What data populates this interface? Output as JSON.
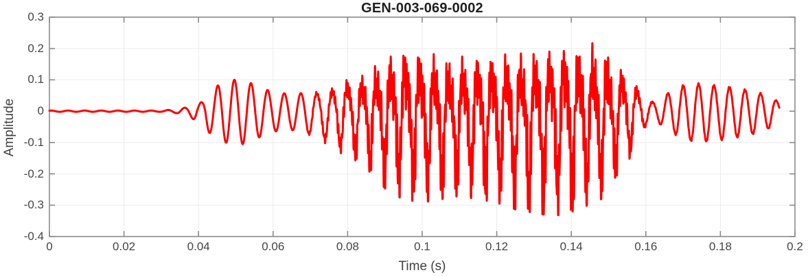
{
  "figure": {
    "title": "GEN-003-069-0002"
  },
  "axes": {
    "box_color": "#8a8a8a",
    "grid_color": "#ebebeb",
    "tick_color": "#8a8a8a",
    "text_color": "#454545",
    "tick_length": 8,
    "grid_on": true
  },
  "chart_data": {
    "type": "line",
    "title": "GEN-003-069-0002",
    "xlabel": "Time (s)",
    "ylabel": "Amplitude",
    "xlim": [
      0,
      0.2
    ],
    "ylim": [
      -0.4,
      0.3
    ],
    "xticks": [
      0,
      0.02,
      0.04,
      0.06,
      0.08,
      0.1,
      0.12,
      0.14,
      0.16,
      0.18,
      0.2
    ],
    "xtick_labels": [
      "0",
      "0.02",
      "0.04",
      "0.06",
      "0.08",
      "0.1",
      "0.12",
      "0.14",
      "0.16",
      "0.18",
      "0.2"
    ],
    "yticks": [
      -0.4,
      -0.3,
      -0.2,
      -0.1,
      0,
      0.1,
      0.2,
      0.3
    ],
    "ytick_labels": [
      "-0.4",
      "-0.3",
      "-0.2",
      "-0.1",
      "0",
      "0.1",
      "0.2",
      "0.3"
    ],
    "grid": true,
    "legend": null,
    "line_color": "#ff0000",
    "line_width": 3,
    "signal": {
      "description": "speech-like waveform; piecewise-linear envelope rows are [time_s, positive_peak, negative_peak_magnitude]",
      "start_time": 0.0,
      "end_time": 0.1958,
      "envelope": [
        [
          0.0,
          0.002,
          0.002
        ],
        [
          0.03,
          0.002,
          0.002
        ],
        [
          0.034,
          0.006,
          0.006
        ],
        [
          0.038,
          0.015,
          0.02
        ],
        [
          0.041,
          0.03,
          0.05
        ],
        [
          0.044,
          0.07,
          0.08
        ],
        [
          0.047,
          0.1,
          0.1
        ],
        [
          0.052,
          0.1,
          0.105
        ],
        [
          0.056,
          0.08,
          0.085
        ],
        [
          0.06,
          0.06,
          0.065
        ],
        [
          0.065,
          0.055,
          0.06
        ],
        [
          0.07,
          0.06,
          0.075
        ],
        [
          0.075,
          0.07,
          0.1
        ],
        [
          0.079,
          0.1,
          0.13
        ],
        [
          0.083,
          0.11,
          0.15
        ],
        [
          0.087,
          0.14,
          0.19
        ],
        [
          0.091,
          0.17,
          0.24
        ],
        [
          0.095,
          0.19,
          0.26
        ],
        [
          0.1,
          0.18,
          0.27
        ],
        [
          0.105,
          0.17,
          0.26
        ],
        [
          0.11,
          0.165,
          0.25
        ],
        [
          0.115,
          0.17,
          0.26
        ],
        [
          0.12,
          0.17,
          0.27
        ],
        [
          0.125,
          0.18,
          0.29
        ],
        [
          0.13,
          0.185,
          0.3
        ],
        [
          0.135,
          0.19,
          0.31
        ],
        [
          0.14,
          0.2,
          0.3
        ],
        [
          0.144,
          0.19,
          0.28
        ],
        [
          0.148,
          0.22,
          0.26
        ],
        [
          0.151,
          0.16,
          0.21
        ],
        [
          0.154,
          0.13,
          0.17
        ],
        [
          0.157,
          0.095,
          0.115
        ],
        [
          0.16,
          0.035,
          0.045
        ],
        [
          0.163,
          0.03,
          0.035
        ],
        [
          0.166,
          0.06,
          0.06
        ],
        [
          0.17,
          0.085,
          0.09
        ],
        [
          0.174,
          0.09,
          0.1
        ],
        [
          0.178,
          0.085,
          0.095
        ],
        [
          0.182,
          0.08,
          0.09
        ],
        [
          0.186,
          0.072,
          0.08
        ],
        [
          0.19,
          0.062,
          0.07
        ],
        [
          0.193,
          0.048,
          0.055
        ],
        [
          0.1958,
          0.03,
          0.04
        ]
      ],
      "fundamental_hz": [
        [
          0.0,
          224
        ],
        [
          0.065,
          224
        ],
        [
          0.085,
          258
        ],
        [
          0.15,
          258
        ],
        [
          0.162,
          244
        ],
        [
          0.1958,
          238
        ]
      ],
      "ripple_hz": [
        2350,
        3550
      ],
      "ripple_mix": [
        [
          0.0,
          0.0
        ],
        [
          0.068,
          0.0
        ],
        [
          0.075,
          0.3
        ],
        [
          0.085,
          0.8
        ],
        [
          0.09,
          1.0
        ],
        [
          0.15,
          1.0
        ],
        [
          0.156,
          0.6
        ],
        [
          0.16,
          0.2
        ],
        [
          0.164,
          0.05
        ],
        [
          0.1958,
          0.05
        ]
      ]
    }
  }
}
